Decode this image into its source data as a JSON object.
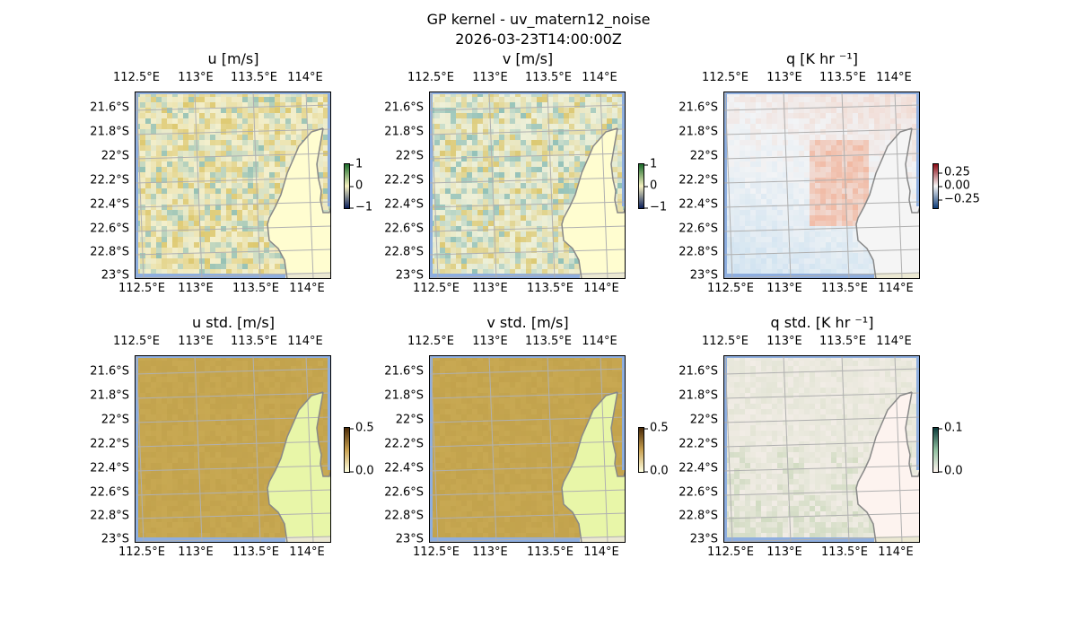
{
  "figure": {
    "title_line1": "GP kernel - uv_matern12_noise",
    "title_line2": "2026-03-23T14:00:00Z"
  },
  "lon_ticks": [
    "112.5°E",
    "113°E",
    "113.5°E",
    "114°E"
  ],
  "lat_ticks": [
    "21.6°S",
    "21.8°S",
    "22°S",
    "22.2°S",
    "22.4°S",
    "22.6°S",
    "22.8°S",
    "23°S"
  ],
  "panels": [
    {
      "title": "u [m/s]",
      "cbar_ticks": [
        "1",
        "0",
        "−1"
      ],
      "scheme": "uv",
      "colors": {
        "base": "#f3efcc",
        "land": "#fffdd0",
        "pos": "#d4b848",
        "neg": "#6aacaa",
        "cbar": [
          "#1a6b2a",
          "#f6f1c0",
          "#0a1e5a"
        ]
      }
    },
    {
      "title": "v [m/s]",
      "cbar_ticks": [
        "1",
        "0",
        "−1"
      ],
      "scheme": "uv",
      "colors": {
        "base": "#eef0d8",
        "land": "#fffdd0",
        "pos": "#d4b848",
        "neg": "#6aacaa",
        "cbar": [
          "#1a6b2a",
          "#f6f1c0",
          "#0a1e5a"
        ]
      }
    },
    {
      "title": "q [K hr ⁻¹]",
      "cbar_ticks": [
        "0.25",
        "0.00",
        "−0.25"
      ],
      "scheme": "q",
      "colors": {
        "base": "#f2f4f6",
        "land": "#f5f5f5",
        "pos": "#f0a080",
        "neg": "#9cc8e8",
        "cbar": [
          "#8a0a14",
          "#f7f7f7",
          "#0b3a78"
        ]
      }
    },
    {
      "title": "u std. [m/s]",
      "cbar_ticks": [
        "0.5",
        "0.0"
      ],
      "scheme": "std",
      "colors": {
        "base": "#c6a650",
        "land": "#e8f6a8",
        "pos": "#bfa04a",
        "neg": "#d0b25c",
        "cbar": [
          "#4a2a08",
          "#c8a050",
          "#ffffe0"
        ]
      }
    },
    {
      "title": "v std. [m/s]",
      "cbar_ticks": [
        "0.5",
        "0.0"
      ],
      "scheme": "std",
      "colors": {
        "base": "#c6a650",
        "land": "#e8f6a8",
        "pos": "#bfa04a",
        "neg": "#d0b25c",
        "cbar": [
          "#4a2a08",
          "#c8a050",
          "#ffffe0"
        ]
      }
    },
    {
      "title": "q std. [K hr ⁻¹]",
      "cbar_ticks": [
        "0.1",
        "0.0"
      ],
      "scheme": "qstd",
      "colors": {
        "base": "#f2ede6",
        "land": "#fdf3ef",
        "pos": "#c4d4b4",
        "neg": "#ebe6dc",
        "cbar": [
          "#0a3a3a",
          "#90c0a0",
          "#fff6f0"
        ]
      }
    }
  ],
  "colors": {
    "ocean": "#8eaedf",
    "grid": "#b0b0b0",
    "coast": "#888888",
    "land_shelf": "#ebe8d2"
  }
}
